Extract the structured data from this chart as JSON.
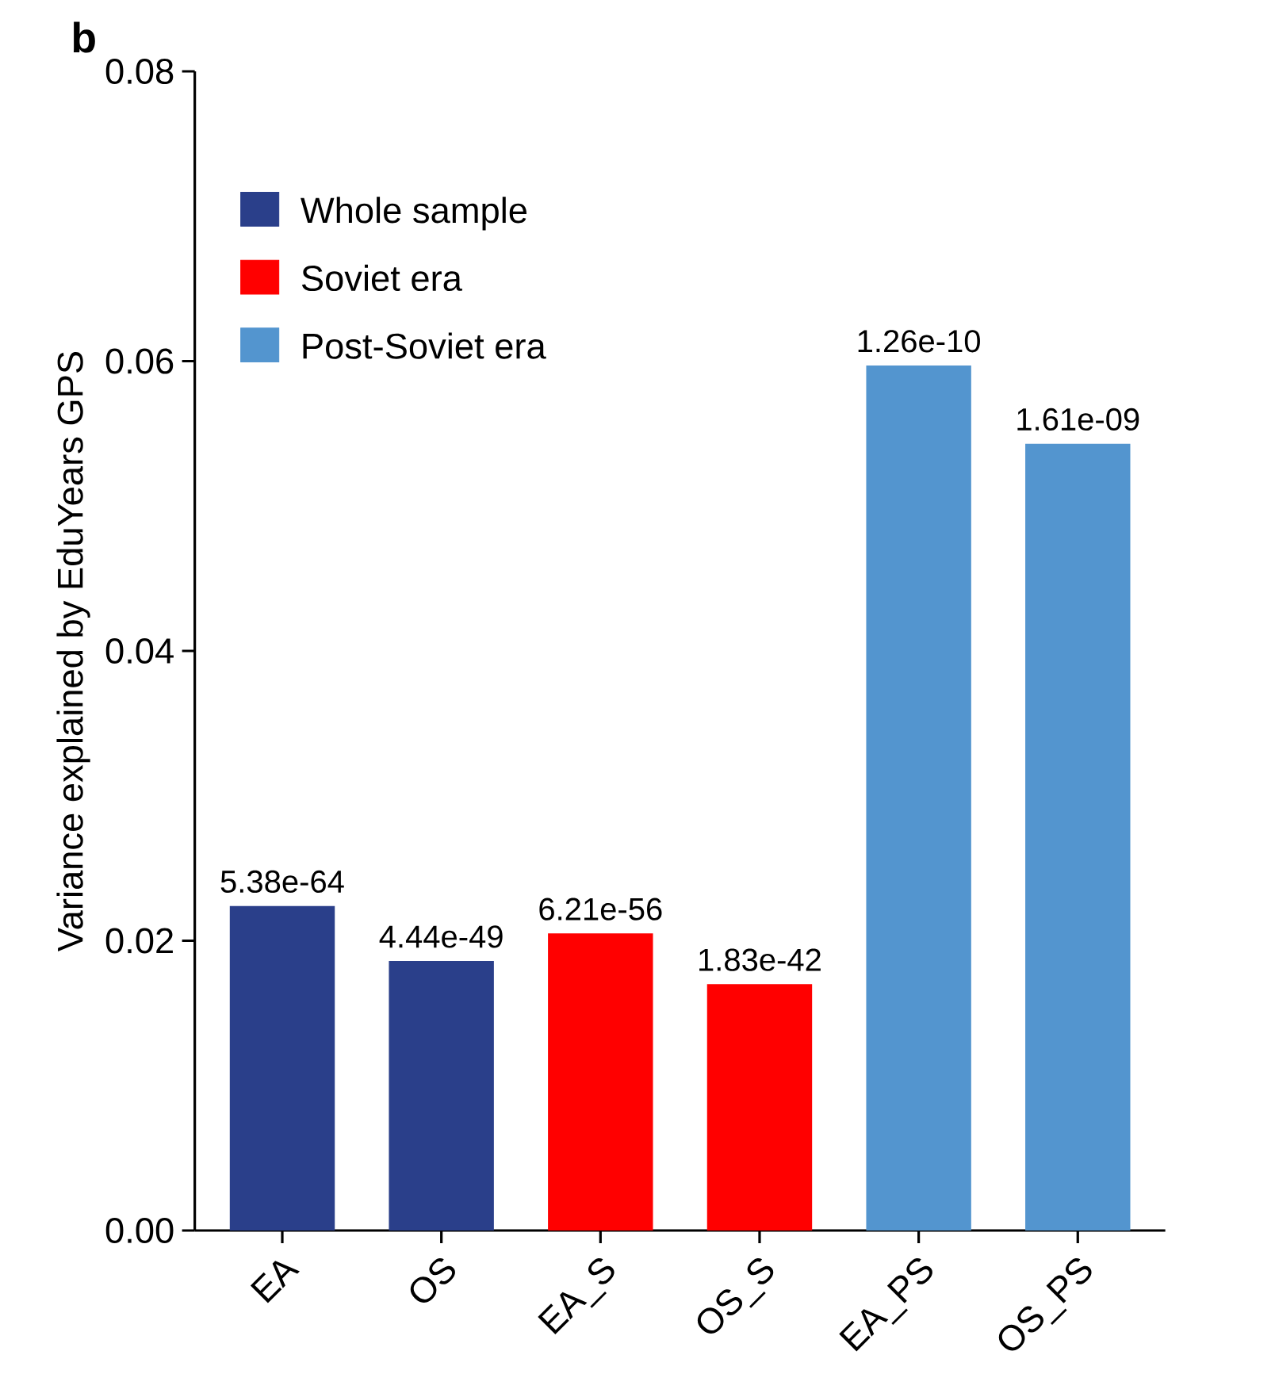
{
  "chart_data": {
    "type": "bar",
    "ylabel": "Variance explained by EduYears GPS",
    "annotations": [
      "b",
      {
        "text": "5.38e-64",
        "x": "EA",
        "y": 0.0224
      },
      {
        "text": "4.44e-49",
        "x": "OS",
        "y": 0.0186
      },
      {
        "text": "6.21e-56",
        "x": "EA_S",
        "y": 0.0205
      },
      {
        "text": "1.83e-42",
        "x": "OS_S",
        "y": 0.017
      },
      {
        "text": "1.26e-10",
        "x": "EA_PS",
        "y": 0.0597
      },
      {
        "text": "1.61e-09",
        "x": "OS_PS",
        "y": 0.0543
      }
    ],
    "categories": [
      "EA",
      "OS",
      "EA_S",
      "OS_S",
      "EA_PS",
      "OS_PS"
    ],
    "series": [
      {
        "name": "Whole sample",
        "color": "#2a3f8a",
        "values": [
          0.0224,
          0.0186,
          null,
          null,
          null,
          null
        ]
      },
      {
        "name": "Soviet era",
        "color": "#ff0000",
        "values": [
          null,
          null,
          0.0205,
          0.017,
          null,
          null
        ]
      },
      {
        "name": "Post-Soviet era",
        "color": "#5395cf",
        "values": [
          null,
          null,
          null,
          null,
          0.0597,
          0.0543
        ]
      }
    ],
    "ylim": [
      0,
      0.08
    ],
    "yticks": [
      {
        "value": 0,
        "label": "0.00"
      },
      {
        "value": 0.02,
        "label": "0.02"
      },
      {
        "value": 0.04,
        "label": "0.04"
      },
      {
        "value": 0.06,
        "label": "0.06"
      },
      {
        "value": 0.08,
        "label": "0.08"
      }
    ],
    "legend": "top left"
  }
}
